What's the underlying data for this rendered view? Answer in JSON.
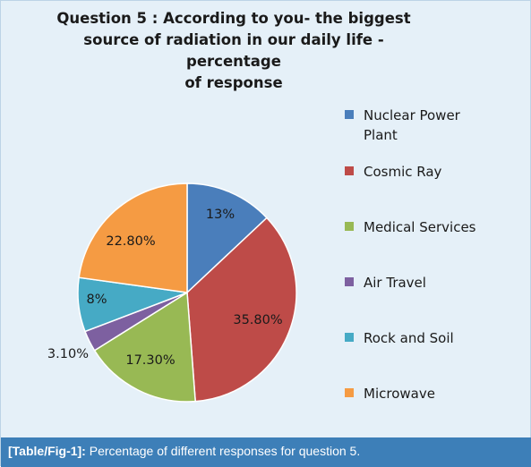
{
  "chart_data": {
    "type": "pie",
    "title": [
      "Question 5 : According to you- the biggest",
      "source of radiation  in our daily  life - percentage",
      "of response"
    ],
    "categories": [
      "Nuclear Power Plant",
      "Cosmic Ray",
      "Medical Services",
      "Air Travel",
      "Rock and Soil",
      "Microwave"
    ],
    "legend_lines": [
      [
        "Nuclear Power",
        "Plant"
      ],
      [
        "Cosmic Ray"
      ],
      [
        "Medical Services"
      ],
      [
        "Air Travel"
      ],
      [
        "Rock and Soil"
      ],
      [
        "Microwave"
      ]
    ],
    "values": [
      13,
      35.8,
      17.3,
      3.1,
      8,
      22.8
    ],
    "labels": [
      "13%",
      "35.80%",
      "17.30%",
      "3.10%",
      "8%",
      "22.80%"
    ],
    "colors": [
      "#4a7ebb",
      "#be4b48",
      "#98b954",
      "#7d60a0",
      "#46aac5",
      "#f59b43"
    ],
    "legend_position": "right"
  },
  "caption": {
    "tag": "[Table/Fig-1]:",
    "text": " Percentage of different responses for question 5."
  }
}
